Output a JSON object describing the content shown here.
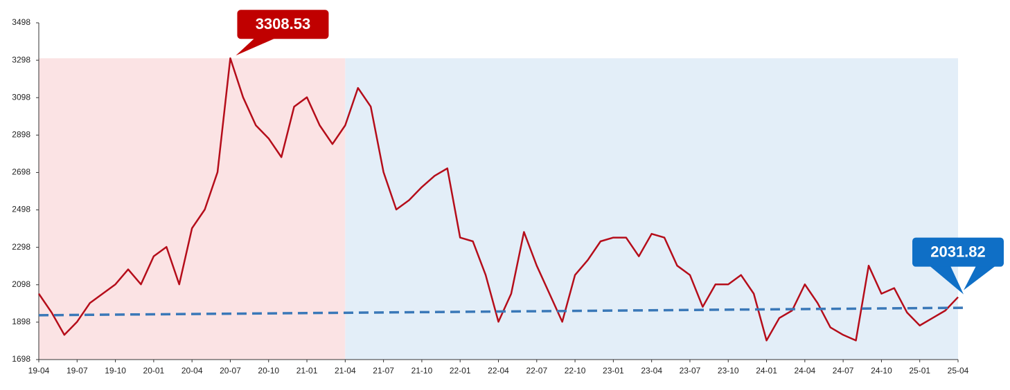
{
  "chart_data": {
    "type": "line",
    "x": [
      "19-04",
      "19-05",
      "19-06",
      "19-07",
      "19-08",
      "19-09",
      "19-10",
      "19-11",
      "19-12",
      "20-01",
      "20-02",
      "20-03",
      "20-04",
      "20-05",
      "20-06",
      "20-07",
      "20-08",
      "20-09",
      "20-10",
      "20-11",
      "20-12",
      "21-01",
      "21-02",
      "21-03",
      "21-04",
      "21-05",
      "21-06",
      "21-07",
      "21-08",
      "21-09",
      "21-10",
      "21-11",
      "21-12",
      "22-01",
      "22-02",
      "22-03",
      "22-04",
      "22-05",
      "22-06",
      "22-07",
      "22-08",
      "22-09",
      "22-10",
      "22-11",
      "22-12",
      "23-01",
      "23-02",
      "23-03",
      "23-04",
      "23-05",
      "23-06",
      "23-07",
      "23-08",
      "23-09",
      "23-10",
      "23-11",
      "23-12",
      "24-01",
      "24-02",
      "24-03",
      "24-04",
      "24-05",
      "24-06",
      "24-07",
      "24-08",
      "24-09",
      "24-10",
      "24-11",
      "24-12",
      "25-01",
      "25-02",
      "25-03",
      "25-04"
    ],
    "series": [
      {
        "color": "#b50d1a",
        "values": [
          2050,
          1950,
          1830,
          1900,
          2000,
          2050,
          2100,
          2180,
          2100,
          2250,
          2300,
          2100,
          2400,
          2500,
          2700,
          3308.53,
          3100,
          2950,
          2880,
          2780,
          3050,
          3100,
          2950,
          2850,
          2950,
          3150,
          3050,
          2700,
          2500,
          2550,
          2620,
          2680,
          2720,
          2350,
          2330,
          2150,
          1900,
          2050,
          2380,
          2200,
          2050,
          1900,
          2150,
          2230,
          2330,
          2350,
          2350,
          2250,
          2370,
          2350,
          2200,
          2150,
          1980,
          2100,
          2100,
          2150,
          2050,
          1800,
          1920,
          1960,
          2100,
          2000,
          1870,
          1830,
          1800,
          2200,
          2050,
          2080,
          1950,
          1880,
          1920,
          1960,
          2031.82
        ]
      }
    ],
    "xticks": [
      "19-04",
      "19-07",
      "19-10",
      "20-01",
      "20-04",
      "20-07",
      "20-10",
      "21-01",
      "21-04",
      "21-07",
      "21-10",
      "22-01",
      "22-04",
      "22-07",
      "22-10",
      "23-01",
      "23-04",
      "23-07",
      "23-10",
      "24-01",
      "24-04",
      "24-07",
      "24-10",
      "25-01",
      "25-04"
    ],
    "ylim": [
      1698,
      3498
    ],
    "yticks": [
      1698,
      1898,
      2098,
      2298,
      2498,
      2698,
      2898,
      3098,
      3298,
      3498
    ],
    "regions": [
      {
        "from": "19-04",
        "to": "21-04",
        "color": "#fbe3e4"
      },
      {
        "from": "21-04",
        "to": "25-04",
        "color": "#e3eef8"
      }
    ],
    "region_top": 3308.53,
    "trend": {
      "color": "#3a78b8",
      "values": [
        1935,
        1975
      ]
    },
    "annotations": [
      {
        "x": "20-07",
        "value": 3308.53,
        "color": "#c00000"
      },
      {
        "x": "25-04",
        "value": 2031.82,
        "color": "#0f6fc6"
      }
    ]
  }
}
